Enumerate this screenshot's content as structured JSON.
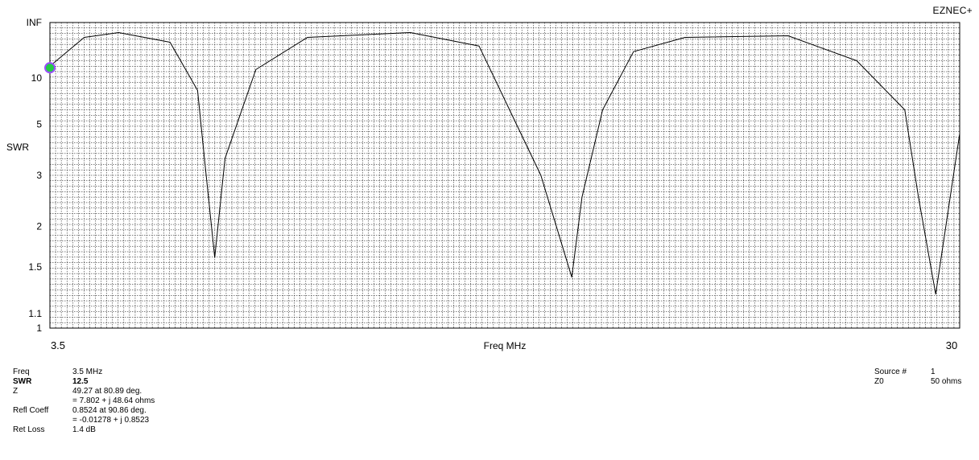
{
  "app": {
    "title": "EZNEC+"
  },
  "chart_data": {
    "type": "line",
    "title": "",
    "xlabel": "Freq MHz",
    "ylabel": "SWR",
    "x_scale": "linear",
    "y_scale": "reflection (log-like)",
    "xlim": [
      3.5,
      30
    ],
    "ylim": [
      1,
      "INF"
    ],
    "x_tick_labels": [
      "3.5",
      "30"
    ],
    "y_tick_labels": [
      "INF",
      "10",
      "5",
      "3",
      "2",
      "1.5",
      "1.1",
      "1"
    ],
    "y_tick_values": [
      null,
      10,
      5,
      3,
      2,
      1.5,
      1.1,
      1
    ],
    "grid": true,
    "marker": {
      "x": 3.5,
      "y": 12.5,
      "color": "#22cc44"
    },
    "series": [
      {
        "color": "#000000",
        "x": [
          3.5,
          4.5,
          5.5,
          7.0,
          7.8,
          8.0,
          8.3,
          8.6,
          9.5,
          11,
          14,
          16,
          17.8,
          18.7,
          19.0,
          19.6,
          20.5,
          22,
          25,
          27,
          28.4,
          28.8,
          29.3,
          30
        ],
        "y": [
          13,
          40,
          60,
          30,
          8,
          3.5,
          1.6,
          3.5,
          12,
          40,
          60,
          25,
          3,
          1.4,
          2.5,
          6,
          20,
          40,
          45,
          15,
          6,
          2.5,
          1.25,
          4.5
        ]
      }
    ]
  },
  "readout": {
    "freq": {
      "label": "Freq",
      "value": "3.5 MHz"
    },
    "swr": {
      "label": "SWR",
      "value": "12.5"
    },
    "z": {
      "label": "Z",
      "value": "49.27 at 80.89 deg.",
      "value2": "= 7.802 + j 48.64 ohms"
    },
    "refl": {
      "label": "Refl Coeff",
      "value": "0.8524 at 90.86 deg.",
      "value2": "= -0.01278 + j 0.8523"
    },
    "ret_loss": {
      "label": "Ret Loss",
      "value": "1.4 dB"
    },
    "source": {
      "label": "Source #",
      "value": "1"
    },
    "z0": {
      "label": "Z0",
      "value": "50 ohms"
    }
  }
}
